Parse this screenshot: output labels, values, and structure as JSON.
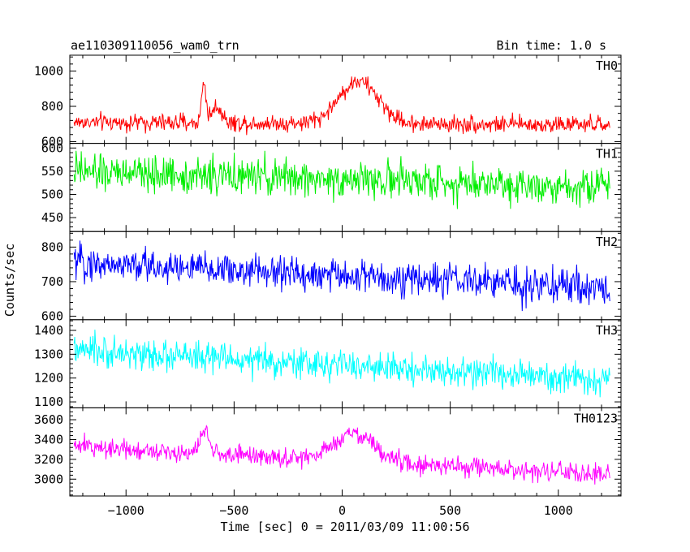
{
  "header": {
    "title": "ae110309110056_wam0_trn",
    "bin_time": "Bin time: 1.0 s"
  },
  "chart_data": {
    "type": "line",
    "xlabel": "Time [sec] 0 = 2011/03/09 11:00:56",
    "ylabel": "Counts/sec",
    "xlim": [
      -1260,
      1290
    ],
    "x_ticks": [
      -1000,
      -500,
      0,
      500,
      1000
    ],
    "x_tick_labels": [
      "−1000",
      "−500",
      "0",
      "500",
      "1000"
    ],
    "x_range": [
      -1240,
      1240
    ],
    "bin_time_s": 1.0,
    "panels": [
      {
        "name": "TH0",
        "color": "#ff0000",
        "ylim": [
          590,
          1090
        ],
        "yticks": [
          600,
          800,
          1000
        ],
        "base_start": 710,
        "base_end": 695,
        "noise": 35,
        "features": [
          {
            "center": -640,
            "width": 10,
            "amp": 230
          },
          {
            "center": -580,
            "width": 25,
            "amp": 90
          },
          {
            "center": 75,
            "width": 90,
            "amp": 240
          }
        ]
      },
      {
        "name": "TH1",
        "color": "#00ee00",
        "ylim": [
          420,
          610
        ],
        "yticks": [
          450,
          500,
          550,
          600
        ],
        "base_start": 548,
        "base_end": 517,
        "noise": 28,
        "features": []
      },
      {
        "name": "TH2",
        "color": "#0000ff",
        "ylim": [
          590,
          845
        ],
        "yticks": [
          600,
          700,
          800
        ],
        "base_start": 755,
        "base_end": 680,
        "noise": 35,
        "features": []
      },
      {
        "name": "TH3",
        "color": "#00ffff",
        "ylim": [
          1075,
          1445
        ],
        "yticks": [
          1100,
          1200,
          1300,
          1400
        ],
        "base_start": 1315,
        "base_end": 1190,
        "noise": 45,
        "features": []
      },
      {
        "name": "TH0123",
        "color": "#ff00ff",
        "ylim": [
          2830,
          3720
        ],
        "yticks": [
          3000,
          3200,
          3400,
          3600
        ],
        "base_start": 3335,
        "base_end": 3040,
        "noise": 70,
        "features": [
          {
            "center": -635,
            "width": 20,
            "amp": 220
          },
          {
            "center": 60,
            "width": 90,
            "amp": 280
          }
        ]
      }
    ]
  }
}
